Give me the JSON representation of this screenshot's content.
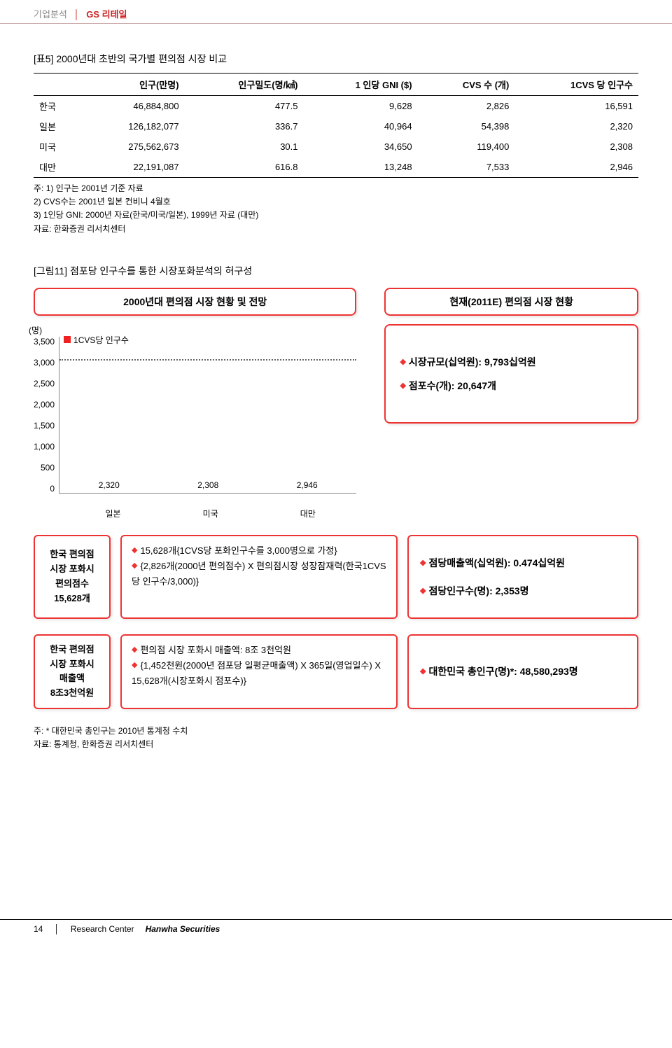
{
  "header": {
    "category": "기업분석",
    "name": "GS 리테일"
  },
  "table": {
    "title": "[표5]   2000년대 초반의 국가별 편의점 시장 비교",
    "columns": [
      "",
      "인구(만명)",
      "인구밀도(명/㎢)",
      "1 인당 GNI ($)",
      "CVS 수 (개)",
      "1CVS 당 인구수"
    ],
    "rows": [
      [
        "한국",
        "46,884,800",
        "477.5",
        "9,628",
        "2,826",
        "16,591"
      ],
      [
        "일본",
        "126,182,077",
        "336.7",
        "40,964",
        "54,398",
        "2,320"
      ],
      [
        "미국",
        "275,562,673",
        "30.1",
        "34,650",
        "119,400",
        "2,308"
      ],
      [
        "대만",
        "22,191,087",
        "616.8",
        "13,248",
        "7,533",
        "2,946"
      ]
    ],
    "notes": [
      "주: 1) 인구는 2001년 기준 자료",
      "    2) CVS수는 2001년 일본 컨비니 4월호",
      "    3) 1인당 GNI: 2000년 자료(한국/미국/일본), 1999년 자료 (대만)",
      "자료: 한화증권 리서치센터"
    ]
  },
  "fig": {
    "title": "[그림11] 점포당 인구수를 통한 시장포화분석의 허구성",
    "left_title": "2000년대 편의점 시장 현황 및 전망",
    "right_title": "현재(2011E) 편의점 시장 현황",
    "chart": {
      "type": "bar",
      "y_unit": "(명)",
      "legend": "1CVS당 인구수",
      "y_ticks": [
        "3,500",
        "3,000",
        "2,500",
        "2,000",
        "1,500",
        "1,000",
        "500",
        "0"
      ],
      "ymax": 3500,
      "dash_at": 3000,
      "categories": [
        "일본",
        "미국",
        "대만"
      ],
      "values": [
        2320,
        2308,
        2946
      ],
      "value_labels": [
        "2,320",
        "2,308",
        "2,946"
      ],
      "bar_color": "#e22222"
    },
    "right_info": [
      "시장규모(십억원): 9,793십억원",
      "점포수(개): 20,647개"
    ],
    "rows": [
      {
        "label": "한국 편의점\n시장 포화시\n편의점수\n15,628개",
        "mid": [
          "15,628개{1CVS당 포화인구수를 3,000명으로 가정}",
          "{2,826개(2000년 편의점수) X 편의점시장 성장잠재력(한국1CVS당 인구수/3,000)}"
        ],
        "right": [
          "점당매출액(십억원): 0.474십억원",
          "점당인구수(명): 2,353명"
        ]
      },
      {
        "label": "한국 편의점\n시장 포화시\n매출액\n8조3천억원",
        "mid": [
          "편의점 시장 포화시 매출액: 8조 3천억원",
          "{1,452천원(2000년 점포당 일평균매출액) X 365일(영업일수) X 15,628개(시장포화시 점포수)}"
        ],
        "right": [
          "대한민국 총인구(명)*: 48,580,293명"
        ]
      }
    ],
    "footnotes": [
      "주: * 대한민국 총인구는 2010년 통계청 수치",
      "자료: 통계청, 한화증권 리서치센터"
    ]
  },
  "footer": {
    "page": "14",
    "center": "Research Center",
    "brand_prefix": "H",
    "brand": "anwha Securities"
  }
}
